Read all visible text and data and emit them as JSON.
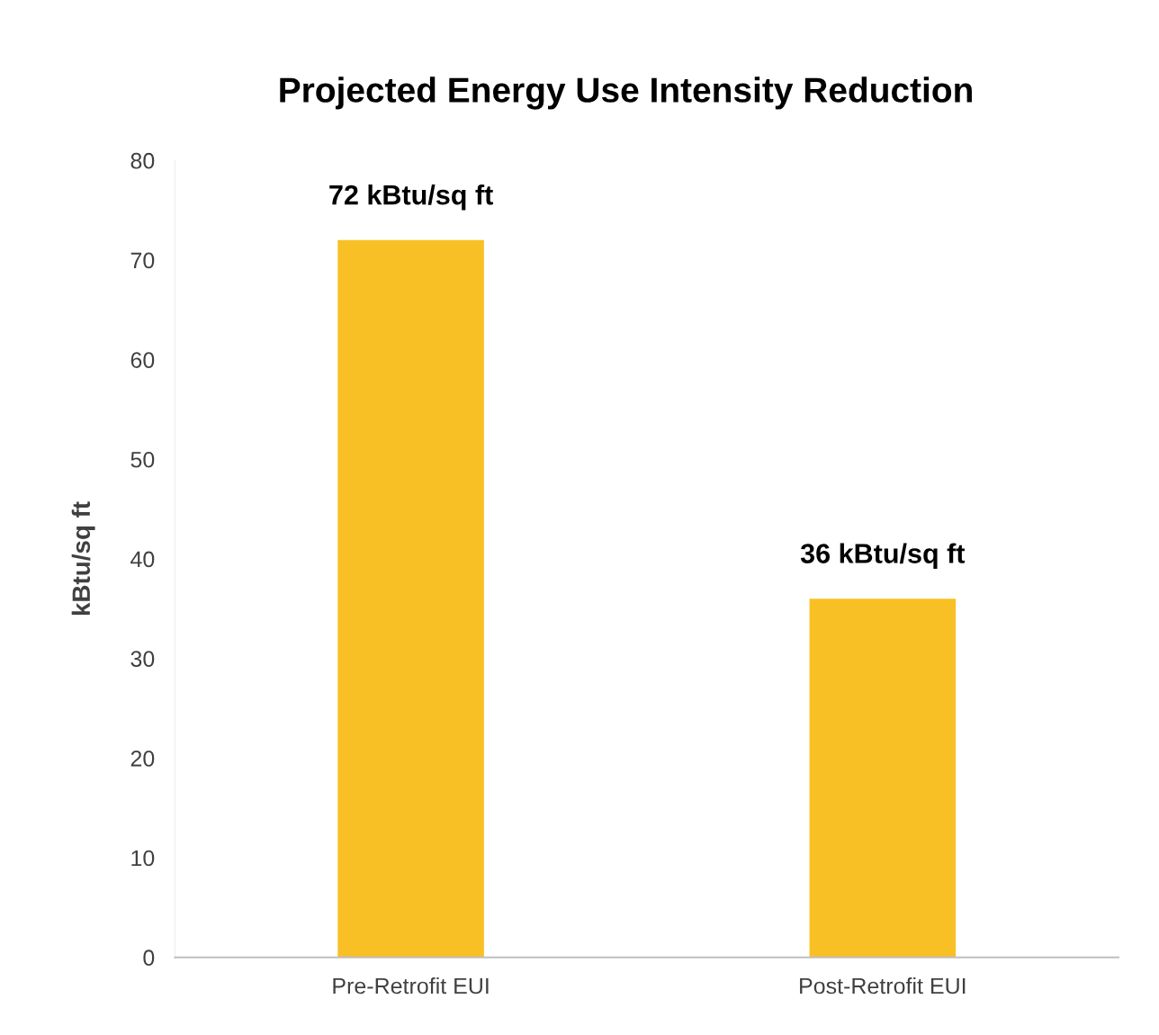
{
  "chart_data": {
    "type": "bar",
    "title": "Projected Energy Use Intensity Reduction",
    "ylabel": "kBtu/sq ft",
    "categories": [
      "Pre-Retrofit EUI",
      "Post-Retrofit EUI"
    ],
    "values": [
      72,
      36
    ],
    "color": "#f8c024",
    "value_labels": [
      "72 kBtu/sq ft",
      "36 kBtu/sq ft"
    ],
    "ylim": [
      0,
      80
    ],
    "yticks": [
      0,
      10,
      20,
      30,
      40,
      50,
      60,
      70,
      80
    ],
    "grid": false,
    "legend": false
  }
}
